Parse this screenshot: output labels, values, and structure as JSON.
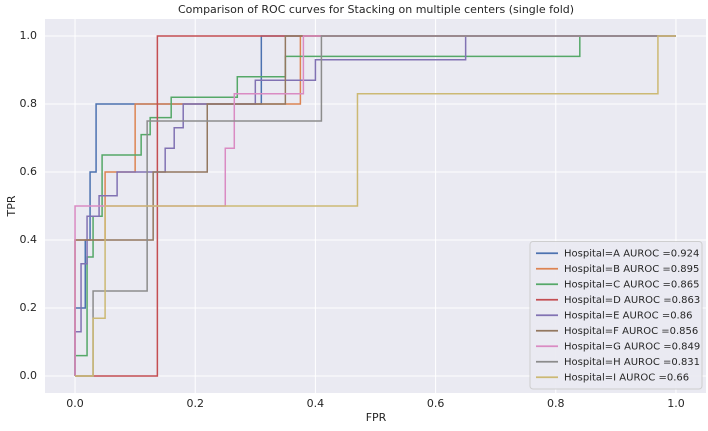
{
  "chart_data": {
    "type": "line",
    "title": "Comparison of ROC curves for Stacking on multiple centers (single fold)",
    "x_label": "FPR",
    "y_label": "TPR",
    "xlim": [
      -0.05,
      1.05
    ],
    "ylim": [
      -0.05,
      1.05
    ],
    "xticks": [
      {
        "value": 0,
        "label": "0.0"
      },
      0.2,
      0.4,
      0.6,
      0.8,
      {
        "value": 1,
        "label": "1.0"
      }
    ],
    "yticks": [
      {
        "value": 0,
        "label": "0.0"
      },
      0.2,
      0.4,
      0.6,
      0.8,
      {
        "value": 1,
        "label": "1.0"
      }
    ],
    "grid": true,
    "legend": "lower right",
    "series": [
      {
        "name": "Hospital=A AUROC =0.924",
        "color": "#4c72b0",
        "x": [
          0,
          0,
          0.017,
          0.017,
          0.025,
          0.025,
          0.035,
          0.035,
          0.31,
          0.31,
          1
        ],
        "values": [
          0,
          0.2,
          0.2,
          0.4,
          0.4,
          0.6,
          0.6,
          0.8,
          0.8,
          1,
          1
        ]
      },
      {
        "name": "Hospital=B AUROC =0.895",
        "color": "#dd8452",
        "x": [
          0,
          0,
          0.05,
          0.05,
          0.1,
          0.1,
          0.375,
          0.375,
          1
        ],
        "values": [
          0,
          0.4,
          0.4,
          0.6,
          0.6,
          0.8,
          0.8,
          1,
          1
        ]
      },
      {
        "name": "Hospital=C AUROC =0.865",
        "color": "#55a868",
        "x": [
          0,
          0,
          0.02,
          0.02,
          0.03,
          0.03,
          0.045,
          0.045,
          0.11,
          0.11,
          0.125,
          0.125,
          0.16,
          0.16,
          0.27,
          0.27,
          0.35,
          0.35,
          0.84,
          0.84,
          1
        ],
        "values": [
          0,
          0.06,
          0.06,
          0.35,
          0.35,
          0.47,
          0.47,
          0.65,
          0.65,
          0.71,
          0.71,
          0.76,
          0.76,
          0.82,
          0.82,
          0.88,
          0.88,
          0.94,
          0.94,
          1,
          1
        ]
      },
      {
        "name": "Hospital=D AUROC =0.863",
        "color": "#c44e52",
        "x": [
          0,
          0.137,
          0.137,
          1
        ],
        "values": [
          0,
          0,
          1,
          1
        ]
      },
      {
        "name": "Hospital=E AUROC =0.86",
        "color": "#8172b3",
        "x": [
          0,
          0,
          0.01,
          0.01,
          0.02,
          0.02,
          0.04,
          0.04,
          0.07,
          0.07,
          0.15,
          0.15,
          0.165,
          0.165,
          0.18,
          0.18,
          0.3,
          0.3,
          0.4,
          0.4,
          0.65,
          0.65,
          1
        ],
        "values": [
          0,
          0.13,
          0.13,
          0.33,
          0.33,
          0.47,
          0.47,
          0.53,
          0.53,
          0.6,
          0.6,
          0.67,
          0.67,
          0.73,
          0.73,
          0.8,
          0.8,
          0.87,
          0.87,
          0.93,
          0.93,
          1,
          1
        ]
      },
      {
        "name": "Hospital=F AUROC =0.856",
        "color": "#937860",
        "x": [
          0,
          0,
          0.13,
          0.13,
          0.22,
          0.22,
          0.35,
          0.35,
          1
        ],
        "values": [
          0,
          0.4,
          0.4,
          0.6,
          0.6,
          0.8,
          0.8,
          1,
          1
        ]
      },
      {
        "name": "Hospital=G AUROC =0.849",
        "color": "#da8bc3",
        "x": [
          0,
          0,
          0.25,
          0.25,
          0.265,
          0.265,
          0.38,
          0.38,
          1
        ],
        "values": [
          0,
          0.5,
          0.5,
          0.67,
          0.67,
          0.83,
          0.83,
          1,
          1
        ]
      },
      {
        "name": "Hospital=H AUROC =0.831",
        "color": "#8c8c8c",
        "x": [
          0,
          0.03,
          0.03,
          0.12,
          0.12,
          0.41,
          0.41,
          1
        ],
        "values": [
          0,
          0,
          0.25,
          0.25,
          0.75,
          0.75,
          1,
          1
        ]
      },
      {
        "name": "Hospital=I AUROC =0.66",
        "color": "#ccb974",
        "x": [
          0,
          0.03,
          0.03,
          0.05,
          0.05,
          0.47,
          0.47,
          0.97,
          0.97,
          1
        ],
        "values": [
          0,
          0,
          0.17,
          0.17,
          0.5,
          0.5,
          0.83,
          0.83,
          1,
          1
        ]
      }
    ]
  }
}
